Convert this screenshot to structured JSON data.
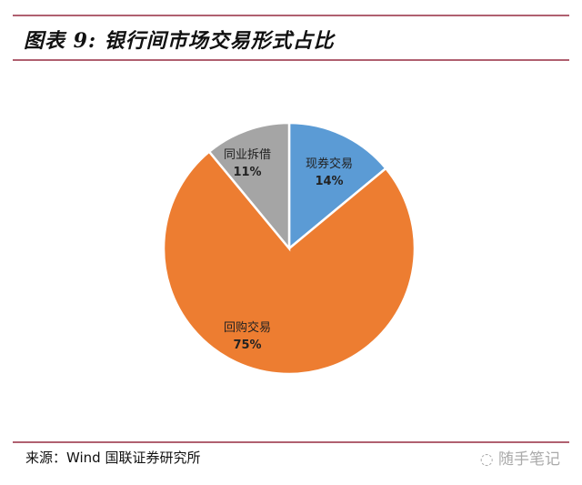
{
  "header": {
    "title": "图表 9: 银行间市场交易形式占比"
  },
  "footer": {
    "source": "来源：Wind 国联证券研究所",
    "watermark": "随手笔记",
    "watermark_icon": "wechat-icon"
  },
  "chart_data": {
    "type": "pie",
    "title": "",
    "start": "top",
    "direction": "clockwise",
    "slices": [
      {
        "label": "现券交易",
        "value": 14,
        "display": "14%",
        "color": "#5B9BD5"
      },
      {
        "label": "回购交易",
        "value": 75,
        "display": "75%",
        "color": "#ED7D31"
      },
      {
        "label": "同业拆借",
        "value": 11,
        "display": "11%",
        "color": "#A5A5A5"
      }
    ]
  },
  "colors": {
    "rule": "#b06070"
  }
}
